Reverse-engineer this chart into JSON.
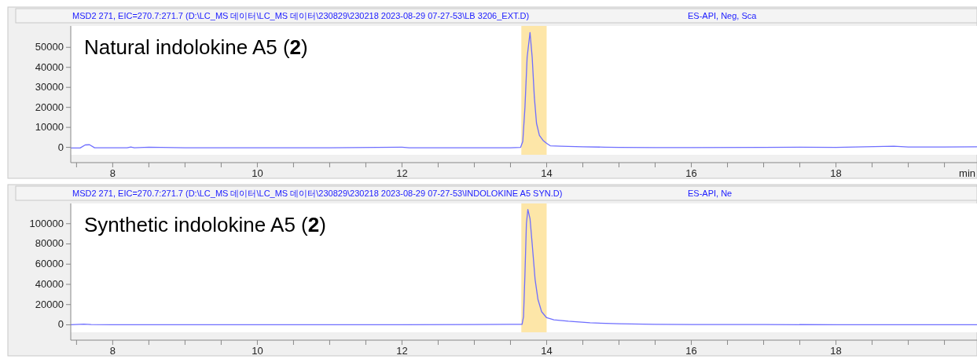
{
  "chart_data": [
    {
      "type": "line",
      "title": "MSD2 271, EIC=270.7:271.7 (D:\\LC_MS 데이터\\LC_MS 데이터\\230829\\230218 2023-08-29 07-27-53\\LB 3206_EXT.D)",
      "subtitle": "ES-API, Neg, Sca",
      "xlabel": "min",
      "annotations": [
        "Natural indolokine A5 (2)"
      ],
      "xlim": [
        7.42,
        19.95
      ],
      "xticks": [
        {
          "value": 7.5,
          "label": null
        },
        8,
        {
          "value": 8.5,
          "label": null
        },
        {
          "value": 9,
          "label": null
        },
        {
          "value": 9.5,
          "label": null
        },
        10,
        {
          "value": 10.5,
          "label": null
        },
        {
          "value": 11,
          "label": null
        },
        {
          "value": 11.5,
          "label": null
        },
        12,
        {
          "value": 12.5,
          "label": null
        },
        {
          "value": 13,
          "label": null
        },
        {
          "value": 13.5,
          "label": null
        },
        14,
        {
          "value": 14.5,
          "label": null
        },
        {
          "value": 15,
          "label": null
        },
        {
          "value": 15.5,
          "label": null
        },
        16,
        {
          "value": 16.5,
          "label": null
        },
        {
          "value": 17,
          "label": null
        },
        {
          "value": 17.5,
          "label": null
        },
        18,
        {
          "value": 18.5,
          "label": null
        },
        {
          "value": 19,
          "label": null
        },
        {
          "value": 19.5,
          "label": null
        }
      ],
      "ylim": [
        -3700,
        60700
      ],
      "yticks": [
        0,
        10000,
        20000,
        30000,
        40000,
        50000
      ],
      "bands": [
        {
          "axis": "x",
          "from": 13.65,
          "to": 14.0,
          "color": "#fde6a8"
        }
      ],
      "series": [
        {
          "color": "#6e6eff",
          "x": [
            7.42,
            7.55,
            7.62,
            7.68,
            7.75,
            8.2,
            8.25,
            8.3,
            8.5,
            9,
            10,
            11,
            12.0,
            12.1,
            13,
            13.5,
            13.64,
            13.67,
            13.7,
            13.73,
            13.77,
            13.8,
            13.83,
            13.86,
            13.9,
            13.95,
            14.0,
            14.05,
            14.2,
            14.5,
            14.8,
            15,
            15.5,
            16,
            17,
            17.5,
            18,
            18.8,
            19,
            19.5,
            19.95
          ],
          "values": [
            -300,
            -300,
            1200,
            1300,
            -200,
            -200,
            200,
            -200,
            100,
            -200,
            -200,
            -200,
            100,
            -200,
            -200,
            -200,
            0,
            3000,
            20000,
            45000,
            57400,
            45000,
            25000,
            12000,
            6000,
            3500,
            2000,
            800,
            600,
            300,
            100,
            0,
            -100,
            -100,
            0,
            100,
            0,
            600,
            200,
            200,
            300
          ]
        }
      ]
    },
    {
      "type": "line",
      "title": "MSD2 271, EIC=270.7:271.7 (D:\\LC_MS 데이터\\LC_MS 데이터\\230829\\230218 2023-08-29 07-27-53\\INDOLOKINE A5 SYN.D)",
      "subtitle": "ES-API, Ne",
      "annotations": [
        "Synthetic indolokine A5 (2)"
      ],
      "xlim": [
        7.42,
        19.95
      ],
      "xticks": [
        {
          "value": 7.5,
          "label": null
        },
        8,
        {
          "value": 8.5,
          "label": null
        },
        {
          "value": 9,
          "label": null
        },
        {
          "value": 9.5,
          "label": null
        },
        10,
        {
          "value": 10.5,
          "label": null
        },
        {
          "value": 11,
          "label": null
        },
        {
          "value": 11.5,
          "label": null
        },
        12,
        {
          "value": 12.5,
          "label": null
        },
        {
          "value": 13,
          "label": null
        },
        {
          "value": 13.5,
          "label": null
        },
        14,
        {
          "value": 14.5,
          "label": null
        },
        {
          "value": 15,
          "label": null
        },
        {
          "value": 15.5,
          "label": null
        },
        16,
        {
          "value": 16.5,
          "label": null
        },
        {
          "value": 17,
          "label": null
        },
        {
          "value": 17.5,
          "label": null
        },
        18,
        {
          "value": 18.5,
          "label": null
        },
        {
          "value": 19,
          "label": null
        },
        {
          "value": 19.5,
          "label": null
        }
      ],
      "ylim": [
        -7400,
        120000
      ],
      "yticks": [
        0,
        20000,
        40000,
        60000,
        80000,
        100000
      ],
      "bands": [
        {
          "axis": "x",
          "from": 13.65,
          "to": 14.0,
          "color": "#fde6a8"
        }
      ],
      "series": [
        {
          "color": "#6e6eff",
          "x": [
            7.42,
            7.6,
            7.7,
            8,
            10,
            12,
            13,
            13.5,
            13.66,
            13.68,
            13.7,
            13.72,
            13.74,
            13.77,
            13.8,
            13.84,
            13.88,
            13.93,
            14.0,
            14.1,
            14.3,
            14.6,
            15,
            15.5,
            16,
            17,
            18,
            19,
            19.95
          ],
          "values": [
            0,
            600,
            200,
            0,
            0,
            0,
            200,
            400,
            500,
            8000,
            50000,
            100000,
            114000,
            105000,
            80000,
            45000,
            25000,
            13000,
            7000,
            5000,
            3500,
            2000,
            1000,
            500,
            300,
            300,
            0,
            0,
            0
          ]
        }
      ]
    }
  ]
}
